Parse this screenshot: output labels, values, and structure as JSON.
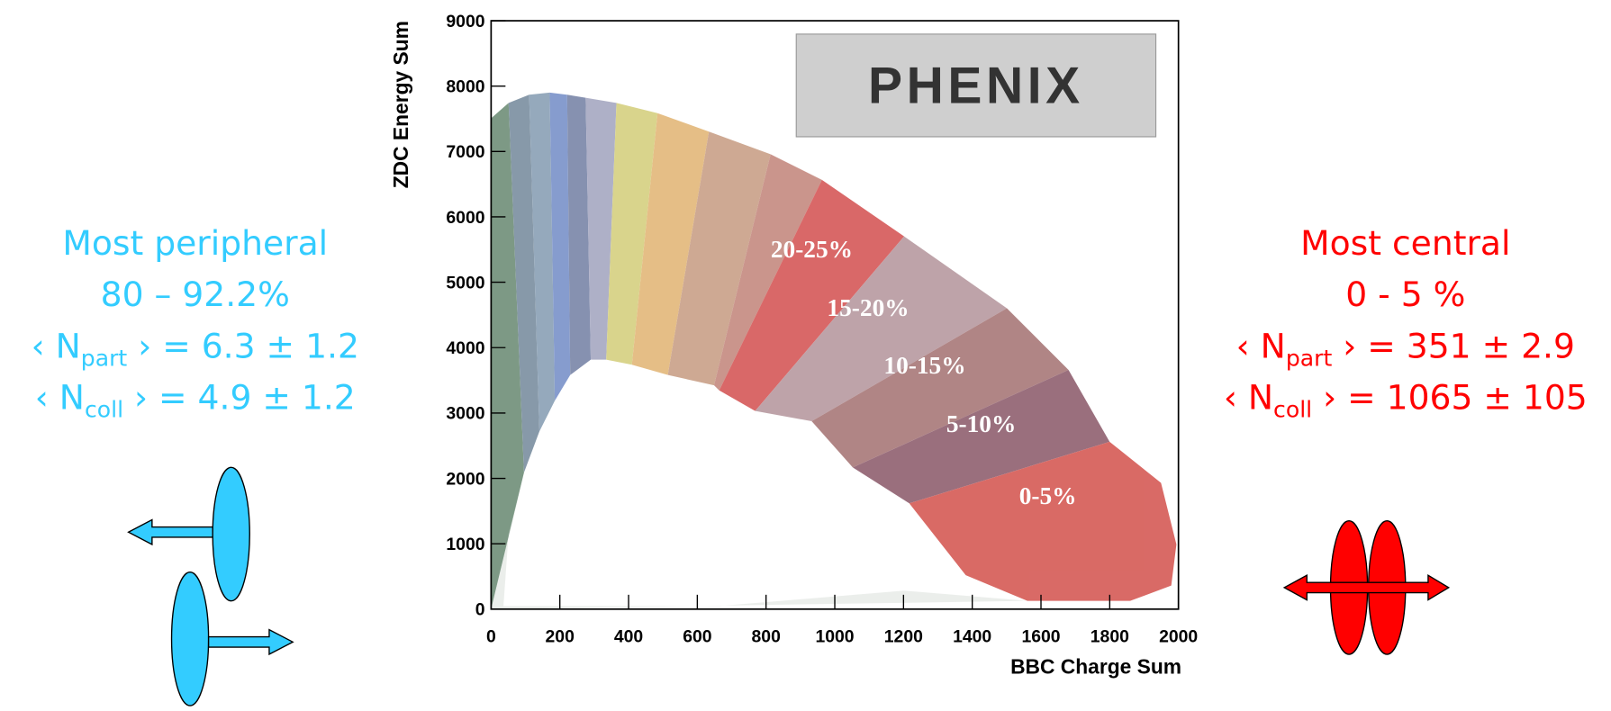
{
  "chart_data": {
    "type": "scatter",
    "xlabel": "BBC Charge Sum",
    "ylabel": "ZDC Energy Sum",
    "xlim": [
      0,
      2000
    ],
    "xticks": [
      0,
      200,
      400,
      600,
      800,
      1000,
      1200,
      1400,
      1600,
      1800,
      2000
    ],
    "ylim": [
      0,
      9000
    ],
    "yticks": [
      0,
      1000,
      2000,
      3000,
      4000,
      5000,
      6000,
      7000,
      8000,
      9000
    ],
    "logo": "PHENIX",
    "annotations": [
      {
        "text": "20-25%",
        "x": 933,
        "y": 5466
      },
      {
        "text": "15-20%",
        "x": 1097,
        "y": 4571
      },
      {
        "text": "10-15%",
        "x": 1262,
        "y": 3691
      },
      {
        "text": "5-10%",
        "x": 1426,
        "y": 2796
      },
      {
        "text": "0-5%",
        "x": 1620,
        "y": 1696
      }
    ]
  },
  "left_panel": {
    "title": "Most peripheral",
    "range": "80 – 92.2%",
    "npart": {
      "open": "‹ N",
      "sub": "part",
      "rest": " › = 6.3 ± 1.2"
    },
    "ncoll": {
      "open": "‹ N",
      "sub": "coll",
      "rest": " › = 4.9 ± 1.2"
    }
  },
  "right_panel": {
    "title": "Most central",
    "range": "0 - 5 %",
    "npart": {
      "open": "‹ N",
      "sub": "part",
      "rest": " › = 351 ± 2.9"
    },
    "ncoll": {
      "open": "‹ N",
      "sub": "coll",
      "rest": " › = 1065 ± 105"
    }
  }
}
